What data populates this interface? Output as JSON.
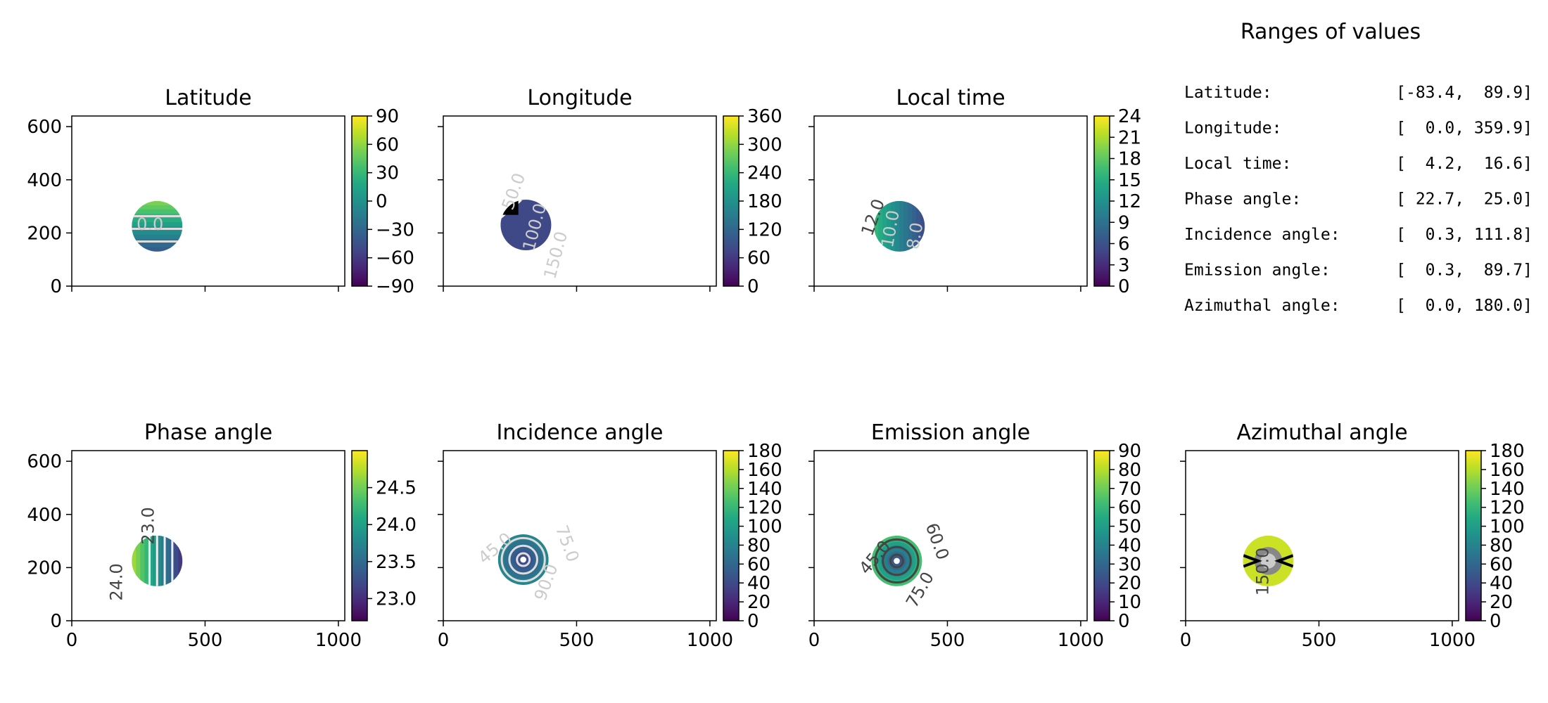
{
  "title": "Ranges of values",
  "ranges": [
    {
      "label": "Latitude:",
      "value": "[-83.4,  89.9]"
    },
    {
      "label": "Longitude:",
      "value": "[  0.0, 359.9]"
    },
    {
      "label": "Local time:",
      "value": "[  4.2,  16.6]"
    },
    {
      "label": "Phase angle:",
      "value": "[ 22.7,  25.0]"
    },
    {
      "label": "Incidence angle:",
      "value": "[  0.3, 111.8]"
    },
    {
      "label": "Emission angle:",
      "value": "[  0.3,  89.7]"
    },
    {
      "label": "Azimuthal angle:",
      "value": "[  0.0, 180.0]"
    }
  ],
  "colors": {
    "viridis": [
      "#440154",
      "#482475",
      "#414487",
      "#355f8d",
      "#2a788e",
      "#21918c",
      "#22a884",
      "#44bf70",
      "#7ad151",
      "#bddf26",
      "#fde725"
    ],
    "axis": "#000000",
    "contour_light": "#cccccc",
    "contour_dark": "#444444"
  },
  "chart_data": [
    {
      "type": "heatmap",
      "title": "Latitude",
      "xlim": [
        0,
        1024
      ],
      "ylim": [
        0,
        640
      ],
      "x_ticks": [
        0,
        500,
        1000
      ],
      "y_ticks": [
        0,
        200,
        400,
        600
      ],
      "show_x_ticklabels": false,
      "show_y_ticklabels": true,
      "colorbar": {
        "min": -90,
        "max": 90,
        "ticks": [
          -90,
          -60,
          -30,
          0,
          30,
          60,
          90
        ],
        "tick_labels": [
          "−90",
          "−60",
          "−30",
          "0",
          "30",
          "60",
          "90"
        ]
      },
      "disk": {
        "cx": 320,
        "cy": 225,
        "r": 95
      },
      "contour_labels": [
        {
          "text": "0.0",
          "dx": -10,
          "dy": 5,
          "rot": 0,
          "tone": "light"
        }
      ]
    },
    {
      "type": "heatmap",
      "title": "Longitude",
      "xlim": [
        0,
        1024
      ],
      "ylim": [
        0,
        640
      ],
      "x_ticks": [
        0,
        500,
        1000
      ],
      "y_ticks": [
        0,
        200,
        400,
        600
      ],
      "show_x_ticklabels": false,
      "show_y_ticklabels": false,
      "colorbar": {
        "min": 0,
        "max": 360,
        "ticks": [
          0,
          60,
          120,
          180,
          240,
          300,
          360
        ],
        "tick_labels": [
          "0",
          "60",
          "120",
          "180",
          "240",
          "300",
          "360"
        ]
      },
      "disk": {
        "cx": 310,
        "cy": 230,
        "r": 95
      },
      "contour_labels": [
        {
          "text": "50.0",
          "dx": -10,
          "dy": -45,
          "rot": -70,
          "tone": "light"
        },
        {
          "text": "100.0",
          "dx": 20,
          "dy": 5,
          "rot": -75,
          "tone": "light"
        },
        {
          "text": "150.0",
          "dx": 50,
          "dy": 45,
          "rot": -75,
          "tone": "light"
        }
      ]
    },
    {
      "type": "heatmap",
      "title": "Local time",
      "xlim": [
        0,
        1024
      ],
      "ylim": [
        0,
        640
      ],
      "x_ticks": [
        0,
        500,
        1000
      ],
      "y_ticks": [
        0,
        200,
        400,
        600
      ],
      "show_x_ticklabels": false,
      "show_y_ticklabels": false,
      "colorbar": {
        "min": 0,
        "max": 24,
        "ticks": [
          0,
          3,
          6,
          9,
          12,
          15,
          18,
          21,
          24
        ],
        "tick_labels": [
          "0",
          "3",
          "6",
          "9",
          "12",
          "15",
          "18",
          "21",
          "24"
        ]
      },
      "disk": {
        "cx": 320,
        "cy": 225,
        "r": 95
      },
      "contour_labels": [
        {
          "text": "12.0",
          "dx": -30,
          "dy": -10,
          "rot": -70,
          "tone": "dark"
        },
        {
          "text": "10.0",
          "dx": -5,
          "dy": 5,
          "rot": -80,
          "tone": "light"
        },
        {
          "text": "8.0",
          "dx": 30,
          "dy": 15,
          "rot": -80,
          "tone": "light"
        }
      ]
    },
    {
      "type": "heatmap",
      "title": "Phase angle",
      "xlim": [
        0,
        1024
      ],
      "ylim": [
        0,
        640
      ],
      "x_ticks": [
        0,
        500,
        1000
      ],
      "y_ticks": [
        0,
        200,
        400,
        600
      ],
      "show_x_ticklabels": true,
      "show_y_ticklabels": true,
      "colorbar": {
        "min": 22.7,
        "max": 25.0,
        "ticks": [
          23.0,
          23.5,
          24.0,
          24.5
        ],
        "tick_labels": [
          "23.0",
          "23.5",
          "24.0",
          "24.5"
        ]
      },
      "disk": {
        "cx": 320,
        "cy": 225,
        "r": 95
      },
      "contour_labels": [
        {
          "text": "24.0",
          "dx": -50,
          "dy": 30,
          "rot": -90,
          "tone": "dark"
        },
        {
          "text": "23.0",
          "dx": -5,
          "dy": -50,
          "rot": -90,
          "tone": "dark"
        }
      ]
    },
    {
      "type": "heatmap",
      "title": "Incidence angle",
      "xlim": [
        0,
        1024
      ],
      "ylim": [
        0,
        640
      ],
      "x_ticks": [
        0,
        500,
        1000
      ],
      "y_ticks": [
        0,
        200,
        400,
        600
      ],
      "show_x_ticklabels": true,
      "show_y_ticklabels": false,
      "colorbar": {
        "min": 0,
        "max": 180,
        "ticks": [
          0,
          20,
          40,
          60,
          80,
          100,
          120,
          140,
          160,
          180
        ],
        "tick_labels": [
          "0",
          "20",
          "40",
          "60",
          "80",
          "100",
          "120",
          "140",
          "160",
          "180"
        ]
      },
      "disk": {
        "cx": 300,
        "cy": 230,
        "r": 95
      },
      "contour_labels": [
        {
          "text": "45.0",
          "dx": -35,
          "dy": -10,
          "rot": -40,
          "tone": "light"
        },
        {
          "text": "90.0",
          "dx": 40,
          "dy": 35,
          "rot": -70,
          "tone": "light"
        },
        {
          "text": "75.0",
          "dx": 55,
          "dy": -20,
          "rot": 70,
          "tone": "light"
        }
      ]
    },
    {
      "type": "heatmap",
      "title": "Emission angle",
      "xlim": [
        0,
        1024
      ],
      "ylim": [
        0,
        640
      ],
      "x_ticks": [
        0,
        500,
        1000
      ],
      "y_ticks": [
        0,
        200,
        400,
        600
      ],
      "show_x_ticklabels": true,
      "show_y_ticklabels": false,
      "colorbar": {
        "min": 0,
        "max": 90,
        "ticks": [
          0,
          10,
          20,
          30,
          40,
          50,
          60,
          70,
          80,
          90
        ],
        "tick_labels": [
          "0",
          "10",
          "20",
          "30",
          "40",
          "50",
          "60",
          "70",
          "80",
          "90"
        ]
      },
      "disk": {
        "cx": 310,
        "cy": 225,
        "r": 95
      },
      "contour_labels": [
        {
          "text": "45.0",
          "dx": -25,
          "dy": 0,
          "rot": -50,
          "tone": "dark"
        },
        {
          "text": "75.0",
          "dx": 40,
          "dy": 45,
          "rot": -60,
          "tone": "dark"
        },
        {
          "text": "60.0",
          "dx": 50,
          "dy": -25,
          "rot": 70,
          "tone": "dark"
        }
      ]
    },
    {
      "type": "heatmap",
      "title": "Azimuthal angle",
      "xlim": [
        0,
        1024
      ],
      "ylim": [
        0,
        640
      ],
      "x_ticks": [
        0,
        500,
        1000
      ],
      "y_ticks": [
        0,
        200,
        400,
        600
      ],
      "show_x_ticklabels": true,
      "show_y_ticklabels": false,
      "colorbar": {
        "min": 0,
        "max": 180,
        "ticks": [
          0,
          20,
          40,
          60,
          80,
          100,
          120,
          140,
          160,
          180
        ],
        "tick_labels": [
          "0",
          "20",
          "40",
          "60",
          "80",
          "100",
          "120",
          "140",
          "160",
          "180"
        ]
      },
      "disk": {
        "cx": 310,
        "cy": 225,
        "r": 95
      },
      "contour_labels": [
        {
          "text": "150.0",
          "dx": 0,
          "dy": 15,
          "rot": -90,
          "tone": "dark"
        }
      ]
    }
  ]
}
